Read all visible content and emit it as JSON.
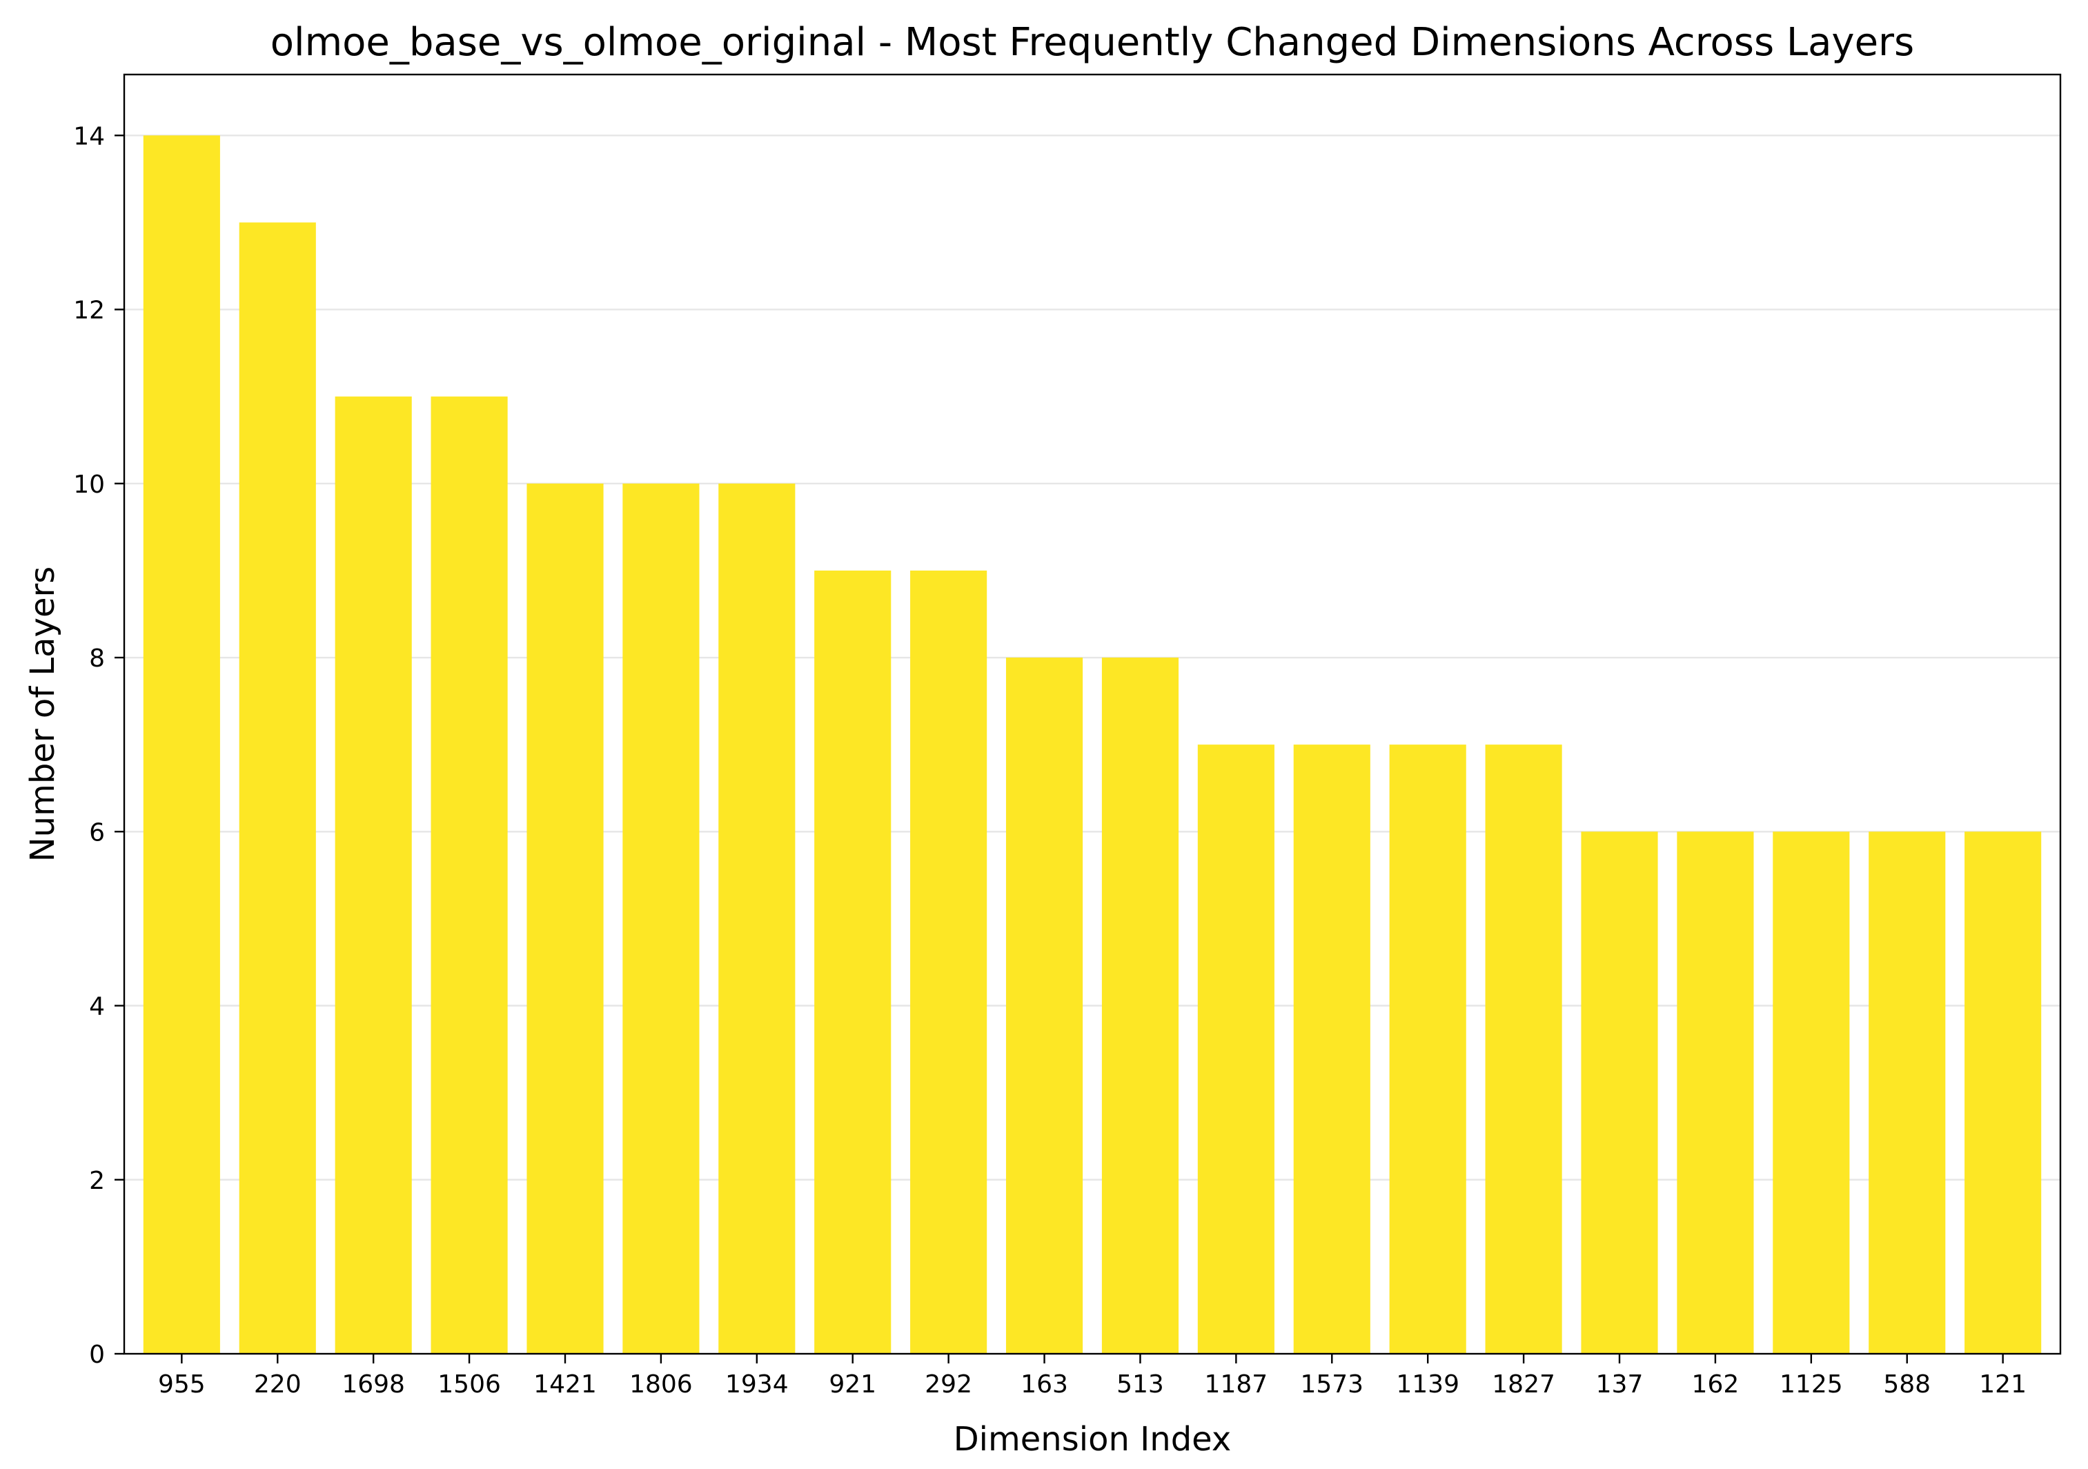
{
  "chart_data": {
    "type": "bar",
    "title": "olmoe_base_vs_olmoe_original - Most Frequently Changed Dimensions Across Layers",
    "xlabel": "Dimension Index",
    "ylabel": "Number of Layers",
    "categories": [
      "955",
      "220",
      "1698",
      "1506",
      "1421",
      "1806",
      "1934",
      "921",
      "292",
      "163",
      "513",
      "1187",
      "1573",
      "1139",
      "1827",
      "137",
      "162",
      "1125",
      "588",
      "121"
    ],
    "values": [
      14,
      13,
      11,
      11,
      10,
      10,
      10,
      9,
      9,
      8,
      8,
      7,
      7,
      7,
      7,
      6,
      6,
      6,
      6,
      6
    ],
    "ylim": [
      0,
      14.7
    ],
    "yticks": [
      0,
      2,
      4,
      6,
      8,
      10,
      12,
      14
    ],
    "grid": "horizontal",
    "bar_color": "#fde725"
  }
}
